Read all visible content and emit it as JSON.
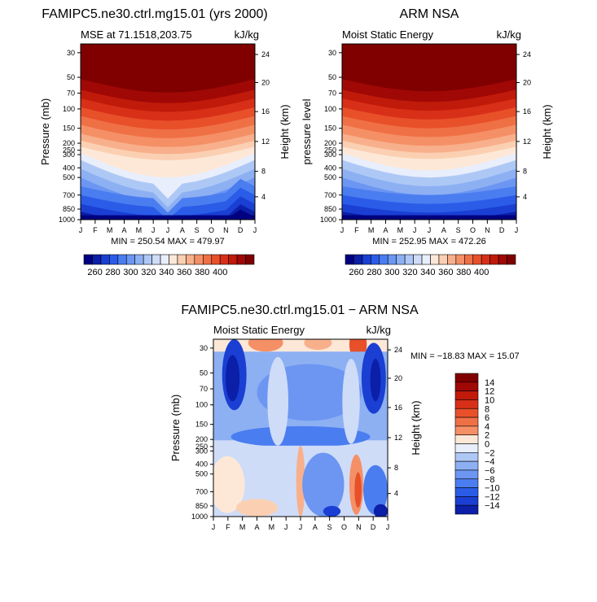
{
  "figure": {
    "colors": {
      "blues": [
        "#000080",
        "#0b1fa8",
        "#1a3fd2",
        "#2a5ce8",
        "#4a7df0",
        "#6c96f2",
        "#8db0f3",
        "#aec8f6",
        "#cfdcf8",
        "#e8eefb"
      ],
      "reds": [
        "#fde8d8",
        "#fbd0b2",
        "#f8b08c",
        "#f59066",
        "#f07046",
        "#e8502a",
        "#d83018",
        "#c01a0a",
        "#a00806",
        "#800000"
      ]
    }
  },
  "chart_data": [
    {
      "type": "heatmap",
      "title": "FAMIPC5.ne30.ctrl.mg15.01 (yrs 2000)",
      "subtitle_left": "MSE at 71.1518,203.75",
      "subtitle_right": "kJ/kg",
      "ylabel": "Pressure (mb)",
      "ylabel_right": "Height (km)",
      "x_ticks": [
        "J",
        "F",
        "M",
        "A",
        "M",
        "J",
        "J",
        "A",
        "S",
        "O",
        "N",
        "D",
        "J"
      ],
      "y_ticks": [
        "30",
        "50",
        "70",
        "100",
        "150",
        "200",
        "250",
        "300",
        "400",
        "500",
        "700",
        "850",
        "1000"
      ],
      "y_ticks_right": [
        "24",
        "20",
        "16",
        "12",
        "8",
        "4"
      ],
      "stats": "MIN = 250.54  MAX = 479.97",
      "levels": [
        255,
        260,
        270,
        280,
        290,
        300,
        310,
        320,
        330,
        335,
        340,
        350,
        360,
        370,
        380,
        390,
        400,
        410
      ],
      "colorbar_labels": [
        "260",
        "280",
        "300",
        "320",
        "340",
        "360",
        "380",
        "400"
      ]
    },
    {
      "type": "heatmap",
      "title": "ARM NSA",
      "subtitle_left": "Moist Static Energy",
      "subtitle_right": "kJ/kg",
      "ylabel": "pressure level",
      "ylabel_right": "Height (km)",
      "x_ticks": [
        "J",
        "F",
        "M",
        "A",
        "M",
        "J",
        "J",
        "A",
        "S",
        "O",
        "N",
        "D",
        "J"
      ],
      "y_ticks": [
        "30",
        "50",
        "70",
        "100",
        "150",
        "200",
        "250",
        "300",
        "400",
        "500",
        "700",
        "850",
        "1000"
      ],
      "y_ticks_right": [
        "24",
        "20",
        "16",
        "12",
        "8",
        "4"
      ],
      "stats": "MIN = 252.95  MAX = 472.26",
      "levels": [
        255,
        260,
        270,
        280,
        290,
        300,
        310,
        320,
        330,
        335,
        340,
        350,
        360,
        370,
        380,
        390,
        400,
        410
      ],
      "colorbar_labels": [
        "260",
        "280",
        "300",
        "320",
        "340",
        "360",
        "380",
        "400"
      ]
    },
    {
      "type": "heatmap",
      "title": "FAMIPC5.ne30.ctrl.mg15.01 − ARM NSA",
      "subtitle_left": "Moist Static Energy",
      "subtitle_right": "kJ/kg",
      "ylabel": "Pressure (mb)",
      "ylabel_right": "Height (km)",
      "x_ticks": [
        "J",
        "F",
        "M",
        "A",
        "M",
        "J",
        "J",
        "A",
        "S",
        "O",
        "N",
        "D",
        "J"
      ],
      "y_ticks": [
        "30",
        "50",
        "70",
        "100",
        "150",
        "200",
        "250",
        "300",
        "400",
        "500",
        "700",
        "850",
        "1000"
      ],
      "y_ticks_right": [
        "24",
        "20",
        "16",
        "12",
        "8",
        "4"
      ],
      "stats": "MIN = −18.83  MAX =   15.07",
      "levels": [
        -14,
        -12,
        -10,
        -8,
        -6,
        -4,
        -2,
        0,
        2,
        4,
        6,
        8,
        10,
        12,
        14
      ],
      "colorbar_labels": [
        "14",
        "12",
        "10",
        "8",
        "6",
        "4",
        "2",
        "0",
        "−2",
        "−4",
        "−6",
        "−8",
        "−10",
        "−12",
        "−14"
      ]
    }
  ]
}
